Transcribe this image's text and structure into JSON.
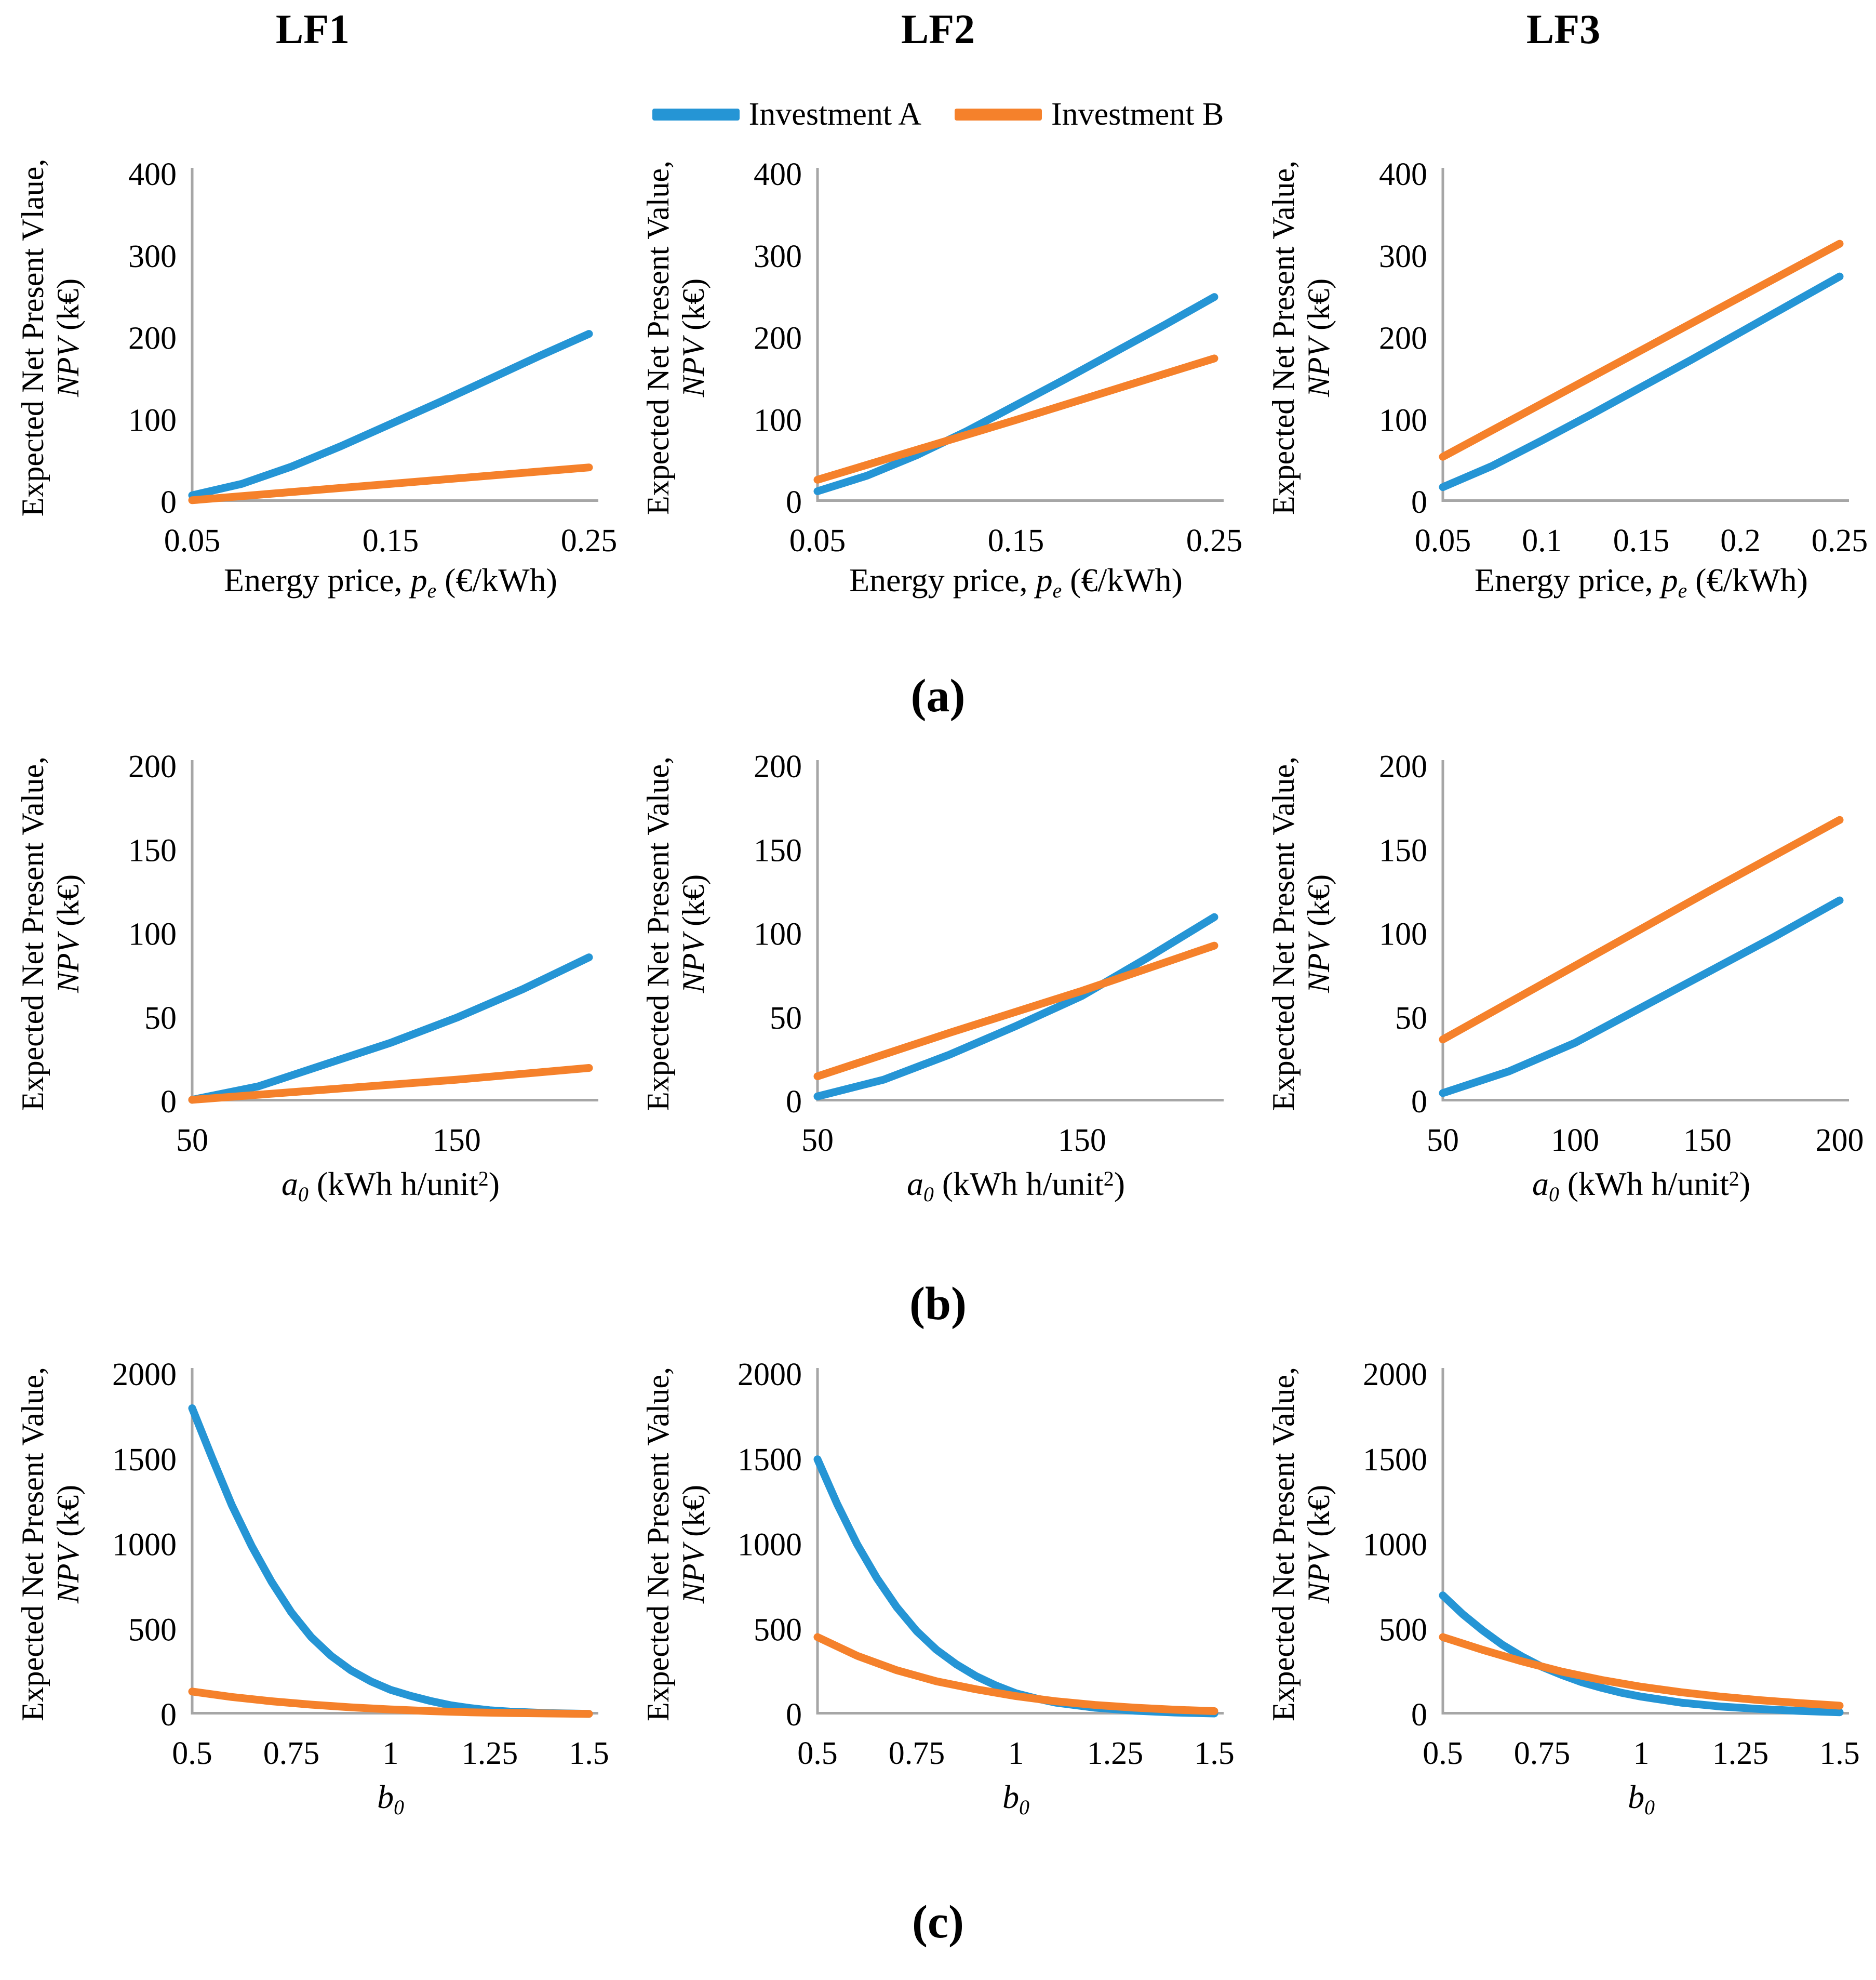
{
  "figure": {
    "column_titles": [
      "LF1",
      "LF2",
      "LF3"
    ],
    "row_labels": [
      "(a)",
      "(b)",
      "(c)"
    ],
    "legend": [
      {
        "label": "Investment A",
        "color": "#2595D5"
      },
      {
        "label": "Investment B",
        "color": "#F5812B"
      }
    ],
    "axis_color": "#A6A6A6",
    "background": "#FFFFFF"
  },
  "chart_data": [
    {
      "id": "a-LF1",
      "panel": "a",
      "column": "LF1",
      "type": "line",
      "y_axis_label_line1": "Expected Net Present Vlaue,",
      "y_axis_label_npv": "NPV",
      "y_axis_label_units": " (k€)",
      "x_label": {
        "pre": "Energy price, ",
        "var": "p",
        "sub": "e",
        "post1": " (€/kWh)",
        "sup": "",
        "post2": ""
      },
      "xlim": [
        0.05,
        0.25
      ],
      "ylim": [
        0,
        400
      ],
      "xtick_values": [
        0.05,
        0.15,
        0.25
      ],
      "xtick_labels": [
        "0.05",
        "0.15",
        "0.25"
      ],
      "ytick_values": [
        0,
        100,
        200,
        300,
        400
      ],
      "ytick_labels": [
        "0",
        "100",
        "200",
        "300",
        "400"
      ],
      "series": [
        {
          "name": "Investment A",
          "color": "#2595D5",
          "x": [
            0.05,
            0.075,
            0.1,
            0.125,
            0.15,
            0.175,
            0.2,
            0.225,
            0.25
          ],
          "y": [
            8,
            22,
            43,
            68,
            95,
            122,
            150,
            178,
            205
          ]
        },
        {
          "name": "Investment B",
          "color": "#F5812B",
          "x": [
            0.05,
            0.15,
            0.25
          ],
          "y": [
            2,
            22,
            42
          ]
        }
      ]
    },
    {
      "id": "a-LF2",
      "panel": "a",
      "column": "LF2",
      "type": "line",
      "y_axis_label_line1": "Expected Net Present Value,",
      "y_axis_label_npv": "NPV",
      "y_axis_label_units": " (k€)",
      "x_label": {
        "pre": "Energy price, ",
        "var": "p",
        "sub": "e",
        "post1": " (€/kWh)",
        "sup": "",
        "post2": ""
      },
      "xlim": [
        0.05,
        0.25
      ],
      "ylim": [
        0,
        400
      ],
      "xtick_values": [
        0.05,
        0.15,
        0.25
      ],
      "xtick_labels": [
        "0.05",
        "0.15",
        "0.25"
      ],
      "ytick_values": [
        0,
        100,
        200,
        300,
        400
      ],
      "ytick_labels": [
        "0",
        "100",
        "200",
        "300",
        "400"
      ],
      "series": [
        {
          "name": "Investment A",
          "color": "#2595D5",
          "x": [
            0.05,
            0.075,
            0.1,
            0.125,
            0.15,
            0.175,
            0.2,
            0.225,
            0.25
          ],
          "y": [
            13,
            32,
            57,
            86,
            118,
            150,
            183,
            216,
            250
          ]
        },
        {
          "name": "Investment B",
          "color": "#F5812B",
          "x": [
            0.05,
            0.15,
            0.25
          ],
          "y": [
            27,
            100,
            175
          ]
        }
      ]
    },
    {
      "id": "a-LF3",
      "panel": "a",
      "column": "LF3",
      "type": "line",
      "y_axis_label_line1": "Expected Net Present Value,",
      "y_axis_label_npv": "NPV",
      "y_axis_label_units": " (k€)",
      "x_label": {
        "pre": "Energy price, ",
        "var": "p",
        "sub": "e",
        "post1": " (€/kWh)",
        "sup": "",
        "post2": ""
      },
      "xlim": [
        0.05,
        0.25
      ],
      "ylim": [
        0,
        400
      ],
      "xtick_values": [
        0.05,
        0.1,
        0.15,
        0.2,
        0.25
      ],
      "xtick_labels": [
        "0.05",
        "0.1",
        "0.15",
        "0.2",
        "0.25"
      ],
      "ytick_values": [
        0,
        100,
        200,
        300,
        400
      ],
      "ytick_labels": [
        "0",
        "100",
        "200",
        "300",
        "400"
      ],
      "series": [
        {
          "name": "Investment A",
          "color": "#2595D5",
          "x": [
            0.05,
            0.075,
            0.1,
            0.125,
            0.15,
            0.175,
            0.2,
            0.225,
            0.25
          ],
          "y": [
            18,
            44,
            75,
            107,
            140,
            173,
            207,
            241,
            275
          ]
        },
        {
          "name": "Investment B",
          "color": "#F5812B",
          "x": [
            0.05,
            0.1,
            0.15,
            0.2,
            0.25
          ],
          "y": [
            55,
            120,
            185,
            250,
            315
          ]
        }
      ]
    },
    {
      "id": "b-LF1",
      "panel": "b",
      "column": "LF1",
      "type": "line",
      "y_axis_label_line1": "Expected Net Present Value,",
      "y_axis_label_npv": "NPV",
      "y_axis_label_units": " (k€)",
      "x_label": {
        "pre": "",
        "var": "a",
        "sub": "0",
        "post1": " (kWh h/unit",
        "sup": "2",
        "post2": ")"
      },
      "xlim": [
        50,
        200
      ],
      "ylim": [
        0,
        200
      ],
      "xtick_values": [
        50,
        150
      ],
      "xtick_labels": [
        "50",
        "150"
      ],
      "ytick_values": [
        0,
        50,
        100,
        150,
        200
      ],
      "ytick_labels": [
        "0",
        "50",
        "100",
        "150",
        "200"
      ],
      "series": [
        {
          "name": "Investment A",
          "color": "#2595D5",
          "x": [
            50,
            75,
            100,
            125,
            150,
            175,
            200
          ],
          "y": [
            1,
            9,
            22,
            35,
            50,
            67,
            86
          ]
        },
        {
          "name": "Investment B",
          "color": "#F5812B",
          "x": [
            50,
            100,
            150,
            200
          ],
          "y": [
            1,
            7,
            13,
            20
          ]
        }
      ]
    },
    {
      "id": "b-LF2",
      "panel": "b",
      "column": "LF2",
      "type": "line",
      "y_axis_label_line1": "Expected Net Present Value,",
      "y_axis_label_npv": "NPV",
      "y_axis_label_units": " (k€)",
      "x_label": {
        "pre": "",
        "var": "a",
        "sub": "0",
        "post1": " (kWh h/unit",
        "sup": "2",
        "post2": ")"
      },
      "xlim": [
        50,
        200
      ],
      "ylim": [
        0,
        200
      ],
      "xtick_values": [
        50,
        150
      ],
      "xtick_labels": [
        "50",
        "150"
      ],
      "ytick_values": [
        0,
        50,
        100,
        150,
        200
      ],
      "ytick_labels": [
        "0",
        "50",
        "100",
        "150",
        "200"
      ],
      "series": [
        {
          "name": "Investment A",
          "color": "#2595D5",
          "x": [
            50,
            75,
            100,
            125,
            150,
            175,
            200
          ],
          "y": [
            3,
            13,
            28,
            45,
            63,
            86,
            110
          ]
        },
        {
          "name": "Investment B",
          "color": "#F5812B",
          "x": [
            50,
            100,
            150,
            200
          ],
          "y": [
            15,
            41,
            66,
            93
          ]
        }
      ]
    },
    {
      "id": "b-LF3",
      "panel": "b",
      "column": "LF3",
      "type": "line",
      "y_axis_label_line1": "Expected Net Present Value,",
      "y_axis_label_npv": "NPV",
      "y_axis_label_units": " (k€)",
      "x_label": {
        "pre": "",
        "var": "a",
        "sub": "0",
        "post1": " (kWh h/unit",
        "sup": "2",
        "post2": ")"
      },
      "xlim": [
        50,
        200
      ],
      "ylim": [
        0,
        200
      ],
      "xtick_values": [
        50,
        100,
        150,
        200
      ],
      "xtick_labels": [
        "50",
        "100",
        "150",
        "200"
      ],
      "ytick_values": [
        0,
        50,
        100,
        150,
        200
      ],
      "ytick_labels": [
        "0",
        "50",
        "100",
        "150",
        "200"
      ],
      "series": [
        {
          "name": "Investment A",
          "color": "#2595D5",
          "x": [
            50,
            75,
            100,
            125,
            150,
            175,
            200
          ],
          "y": [
            5,
            18,
            35,
            56,
            77,
            98,
            120
          ]
        },
        {
          "name": "Investment B",
          "color": "#F5812B",
          "x": [
            50,
            100,
            150,
            200
          ],
          "y": [
            37,
            81,
            125,
            168
          ]
        }
      ]
    },
    {
      "id": "c-LF1",
      "panel": "c",
      "column": "LF1",
      "type": "line",
      "y_axis_label_line1": "Expected Net Present Value,",
      "y_axis_label_npv": "NPV",
      "y_axis_label_units": " (k€)",
      "x_label": {
        "pre": "",
        "var": "b",
        "sub": "0",
        "post1": "",
        "sup": "",
        "post2": ""
      },
      "xlim": [
        0.5,
        1.5
      ],
      "ylim": [
        0,
        2000
      ],
      "xtick_values": [
        0.5,
        0.75,
        1,
        1.25,
        1.5
      ],
      "xtick_labels": [
        "0.5",
        "0.75",
        "1",
        "1.25",
        "1.5"
      ],
      "ytick_values": [
        0,
        500,
        1000,
        1500,
        2000
      ],
      "ytick_labels": [
        "0",
        "500",
        "1000",
        "1500",
        "2000"
      ],
      "series": [
        {
          "name": "Investment A",
          "color": "#2595D5",
          "x": [
            0.5,
            0.55,
            0.6,
            0.65,
            0.7,
            0.75,
            0.8,
            0.85,
            0.9,
            0.95,
            1,
            1.05,
            1.1,
            1.15,
            1.2,
            1.25,
            1.3,
            1.4,
            1.5
          ],
          "y": [
            1800,
            1510,
            1230,
            990,
            780,
            600,
            455,
            345,
            260,
            195,
            145,
            110,
            80,
            55,
            38,
            25,
            17,
            8,
            4
          ]
        },
        {
          "name": "Investment B",
          "color": "#F5812B",
          "x": [
            0.5,
            0.6,
            0.7,
            0.8,
            0.9,
            1,
            1.1,
            1.2,
            1.3,
            1.4,
            1.5
          ],
          "y": [
            135,
            103,
            78,
            58,
            42,
            30,
            20,
            13,
            9,
            6,
            4
          ]
        }
      ]
    },
    {
      "id": "c-LF2",
      "panel": "c",
      "column": "LF2",
      "type": "line",
      "y_axis_label_line1": "Expected Net Present Value,",
      "y_axis_label_npv": "NPV",
      "y_axis_label_units": " (k€)",
      "x_label": {
        "pre": "",
        "var": "b",
        "sub": "0",
        "post1": "",
        "sup": "",
        "post2": ""
      },
      "xlim": [
        0.5,
        1.5
      ],
      "ylim": [
        0,
        2000
      ],
      "xtick_values": [
        0.5,
        0.75,
        1,
        1.25,
        1.5
      ],
      "xtick_labels": [
        "0.5",
        "0.75",
        "1",
        "1.25",
        "1.5"
      ],
      "ytick_values": [
        0,
        500,
        1000,
        1500,
        2000
      ],
      "ytick_labels": [
        "0",
        "500",
        "1000",
        "1500",
        "2000"
      ],
      "series": [
        {
          "name": "Investment A",
          "color": "#2595D5",
          "x": [
            0.5,
            0.55,
            0.6,
            0.65,
            0.7,
            0.75,
            0.8,
            0.85,
            0.9,
            0.95,
            1,
            1.05,
            1.1,
            1.2,
            1.3,
            1.4,
            1.5
          ],
          "y": [
            1500,
            1235,
            1000,
            800,
            630,
            490,
            380,
            295,
            225,
            170,
            125,
            95,
            70,
            40,
            22,
            12,
            6
          ]
        },
        {
          "name": "Investment B",
          "color": "#F5812B",
          "x": [
            0.5,
            0.6,
            0.7,
            0.8,
            0.9,
            1,
            1.1,
            1.2,
            1.3,
            1.4,
            1.5
          ],
          "y": [
            455,
            345,
            260,
            195,
            148,
            108,
            78,
            56,
            40,
            28,
            20
          ]
        }
      ]
    },
    {
      "id": "c-LF3",
      "panel": "c",
      "column": "LF3",
      "type": "line",
      "y_axis_label_line1": "Expected Net Present Value,",
      "y_axis_label_npv": "NPV",
      "y_axis_label_units": " (k€)",
      "x_label": {
        "pre": "",
        "var": "b",
        "sub": "0",
        "post1": "",
        "sup": "",
        "post2": ""
      },
      "xlim": [
        0.5,
        1.5
      ],
      "ylim": [
        0,
        2000
      ],
      "xtick_values": [
        0.5,
        0.75,
        1,
        1.25,
        1.5
      ],
      "xtick_labels": [
        "0.5",
        "0.75",
        "1",
        "1.25",
        "1.5"
      ],
      "ytick_values": [
        0,
        500,
        1000,
        1500,
        2000
      ],
      "ytick_labels": [
        "0",
        "500",
        "1000",
        "1500",
        "2000"
      ],
      "series": [
        {
          "name": "Investment A",
          "color": "#2595D5",
          "x": [
            0.5,
            0.55,
            0.6,
            0.65,
            0.7,
            0.75,
            0.8,
            0.85,
            0.9,
            0.95,
            1,
            1.1,
            1.2,
            1.3,
            1.4,
            1.5
          ],
          "y": [
            700,
            590,
            495,
            410,
            340,
            280,
            232,
            190,
            157,
            128,
            105,
            70,
            47,
            32,
            21,
            13
          ]
        },
        {
          "name": "Investment B",
          "color": "#F5812B",
          "x": [
            0.5,
            0.6,
            0.7,
            0.8,
            0.9,
            1,
            1.1,
            1.2,
            1.3,
            1.4,
            1.5
          ],
          "y": [
            455,
            380,
            312,
            252,
            203,
            163,
            131,
            105,
            84,
            67,
            52
          ]
        }
      ]
    }
  ]
}
